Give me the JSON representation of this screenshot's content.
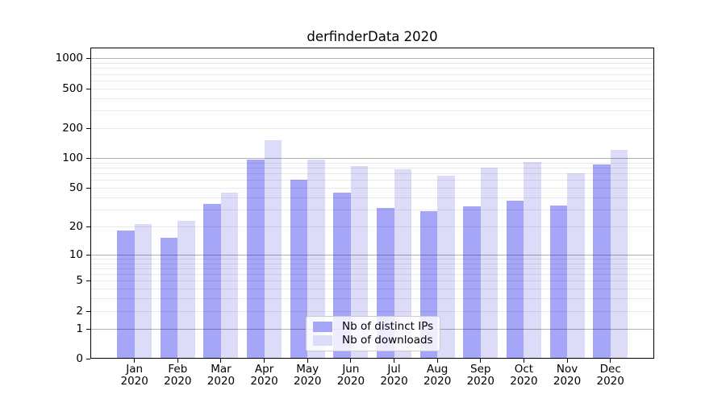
{
  "chart_data": {
    "type": "bar",
    "title": "derfinderData 2020",
    "categories": [
      "Jan",
      "Feb",
      "Mar",
      "Apr",
      "May",
      "Jun",
      "Jul",
      "Aug",
      "Sep",
      "Oct",
      "Nov",
      "Dec"
    ],
    "x_tick_year": "2020",
    "series": [
      {
        "name": "Nb of distinct IPs",
        "color": "#a6a6f9",
        "values": [
          18,
          15,
          34,
          97,
          60,
          45,
          31,
          29,
          32,
          37,
          33,
          87
        ]
      },
      {
        "name": "Nb of downloads",
        "color": "#dcdcf9",
        "values": [
          21,
          23,
          45,
          150,
          97,
          83,
          77,
          66,
          80,
          92,
          70,
          120
        ]
      }
    ],
    "y_axis": {
      "ticks": [
        0,
        1,
        2,
        5,
        10,
        20,
        50,
        100,
        200,
        500,
        1000
      ],
      "scale": "log10(value+1)",
      "max": 1283
    },
    "grid": {
      "major": [
        1,
        10,
        100,
        1000
      ],
      "minor": [
        2,
        3,
        4,
        5,
        6,
        7,
        8,
        9,
        20,
        30,
        40,
        50,
        60,
        70,
        80,
        90,
        200,
        300,
        400,
        500,
        600,
        700,
        800,
        900
      ],
      "major_color": "rgba(0,0,0,0.30)",
      "minor_color": "rgba(0,0,0,0.085)"
    },
    "legend_position": "lower center",
    "axis_color": "#000000"
  }
}
